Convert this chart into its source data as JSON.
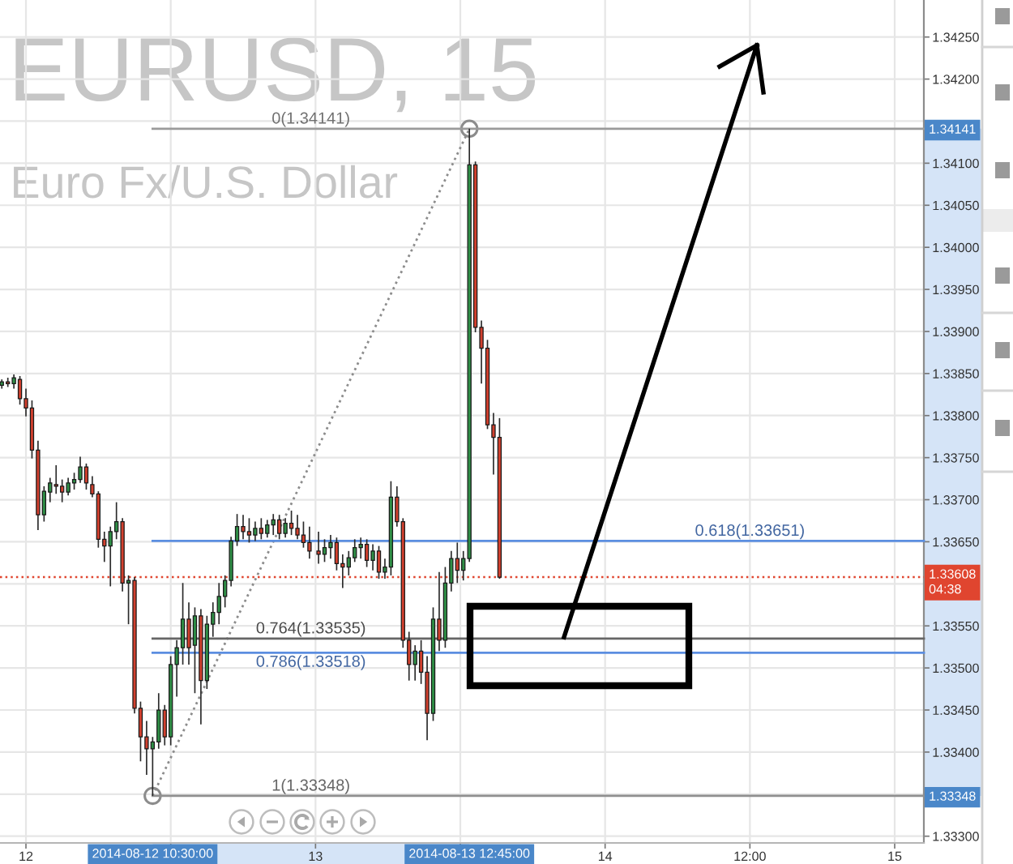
{
  "chart_data": {
    "type": "candlestick",
    "title": "EURUSD, 15",
    "subtitle": "Euro Fx/U.S. Dollar",
    "x": [
      "2014-08-11T22:00",
      "2014-08-11T22:30",
      "2014-08-11T23:00",
      "2014-08-11T23:30",
      "2014-08-12T00:00",
      "2014-08-12T00:30",
      "2014-08-12T01:00",
      "2014-08-12T01:30",
      "2014-08-12T02:00",
      "2014-08-12T02:30",
      "2014-08-12T03:00",
      "2014-08-12T03:30",
      "2014-08-12T04:00",
      "2014-08-12T04:30",
      "2014-08-12T05:00",
      "2014-08-12T05:30",
      "2014-08-12T06:00",
      "2014-08-12T06:30",
      "2014-08-12T07:00",
      "2014-08-12T07:30",
      "2014-08-12T08:00",
      "2014-08-12T08:30",
      "2014-08-12T09:00",
      "2014-08-12T09:30",
      "2014-08-12T10:00",
      "2014-08-12T10:30",
      "2014-08-12T11:00",
      "2014-08-12T11:30",
      "2014-08-12T12:00",
      "2014-08-12T12:30",
      "2014-08-12T13:00",
      "2014-08-12T13:30",
      "2014-08-12T14:00",
      "2014-08-12T14:30",
      "2014-08-12T15:00",
      "2014-08-12T15:30",
      "2014-08-12T16:00",
      "2014-08-12T16:30",
      "2014-08-12T17:00",
      "2014-08-12T17:30",
      "2014-08-12T18:00",
      "2014-08-12T18:30",
      "2014-08-12T19:00",
      "2014-08-12T19:30",
      "2014-08-12T20:00",
      "2014-08-12T20:30",
      "2014-08-12T21:00",
      "2014-08-12T21:30",
      "2014-08-12T22:00",
      "2014-08-12T22:30",
      "2014-08-12T23:00",
      "2014-08-12T23:30",
      "2014-08-13T00:15",
      "2014-08-13T00:45",
      "2014-08-13T01:15",
      "2014-08-13T01:45",
      "2014-08-13T02:15",
      "2014-08-13T02:45",
      "2014-08-13T03:15",
      "2014-08-13T03:45",
      "2014-08-13T04:15",
      "2014-08-13T04:45",
      "2014-08-13T05:15",
      "2014-08-13T05:45",
      "2014-08-13T06:15",
      "2014-08-13T06:45",
      "2014-08-13T07:15",
      "2014-08-13T07:45",
      "2014-08-13T08:15",
      "2014-08-13T08:45",
      "2014-08-13T09:15",
      "2014-08-13T09:45",
      "2014-08-13T10:15",
      "2014-08-13T10:45",
      "2014-08-13T11:15",
      "2014-08-13T11:45",
      "2014-08-13T12:15",
      "2014-08-13T12:45",
      "2014-08-13T13:15",
      "2014-08-13T13:45",
      "2014-08-13T14:15",
      "2014-08-13T14:45",
      "2014-08-13T15:15"
    ],
    "ohlc": [
      [
        1.33836,
        1.33843,
        1.33832,
        1.3384
      ],
      [
        1.3384,
        1.33845,
        1.33834,
        1.33838
      ],
      [
        1.33838,
        1.33849,
        1.33832,
        1.33845
      ],
      [
        1.33843,
        1.33847,
        1.33813,
        1.3382
      ],
      [
        1.3382,
        1.33832,
        1.33799,
        1.33809
      ],
      [
        1.33809,
        1.33818,
        1.33749,
        1.33759
      ],
      [
        1.33759,
        1.3377,
        1.33664,
        1.33682
      ],
      [
        1.33682,
        1.33716,
        1.33674,
        1.3371
      ],
      [
        1.33709,
        1.33726,
        1.33697,
        1.3372
      ],
      [
        1.33718,
        1.33741,
        1.33707,
        1.33716
      ],
      [
        1.33716,
        1.33724,
        1.33697,
        1.33709
      ],
      [
        1.33709,
        1.33726,
        1.33705,
        1.3372
      ],
      [
        1.3372,
        1.33732,
        1.33712,
        1.33724
      ],
      [
        1.33724,
        1.33751,
        1.3372,
        1.33739
      ],
      [
        1.33739,
        1.33743,
        1.33712,
        1.3372
      ],
      [
        1.33718,
        1.33728,
        1.33703,
        1.33707
      ],
      [
        1.33707,
        1.3371,
        1.33643,
        1.33653
      ],
      [
        1.33653,
        1.33662,
        1.33626,
        1.33645
      ],
      [
        1.33645,
        1.33668,
        1.33597,
        1.33662
      ],
      [
        1.33662,
        1.33697,
        1.33653,
        1.33674
      ],
      [
        1.33674,
        1.33678,
        1.33591,
        1.33601
      ],
      [
        1.33601,
        1.3361,
        1.33552,
        1.33604
      ],
      [
        1.33604,
        1.33608,
        1.33446,
        1.33452
      ],
      [
        1.33452,
        1.3346,
        1.33389,
        1.33418
      ],
      [
        1.33418,
        1.33437,
        1.33373,
        1.33404
      ],
      [
        1.33404,
        1.33418,
        1.33348,
        1.33412
      ],
      [
        1.33412,
        1.3347,
        1.33404,
        1.3345
      ],
      [
        1.3345,
        1.33456,
        1.33408,
        1.33418
      ],
      [
        1.33418,
        1.33514,
        1.33408,
        1.33504
      ],
      [
        1.33504,
        1.33533,
        1.33466,
        1.33524
      ],
      [
        1.33524,
        1.33601,
        1.33504,
        1.33558
      ],
      [
        1.33558,
        1.33578,
        1.33504,
        1.33524
      ],
      [
        1.33527,
        1.33572,
        1.3347,
        1.33562
      ],
      [
        1.33562,
        1.3357,
        1.33433,
        1.33485
      ],
      [
        1.33485,
        1.33562,
        1.33475,
        1.33552
      ],
      [
        1.33552,
        1.33578,
        1.33537,
        1.33566
      ],
      [
        1.33566,
        1.33601,
        1.33552,
        1.33585
      ],
      [
        1.33585,
        1.3361,
        1.33572,
        1.33604
      ],
      [
        1.33604,
        1.33656,
        1.33597,
        1.33651
      ],
      [
        1.33651,
        1.33683,
        1.33645,
        1.33668
      ],
      [
        1.33668,
        1.33682,
        1.33653,
        1.33662
      ],
      [
        1.33662,
        1.33678,
        1.33649,
        1.33658
      ],
      [
        1.33658,
        1.33674,
        1.33651,
        1.33666
      ],
      [
        1.33666,
        1.33678,
        1.33653,
        1.3366
      ],
      [
        1.3366,
        1.33676,
        1.33655,
        1.3367
      ],
      [
        1.3367,
        1.33683,
        1.33658,
        1.33676
      ],
      [
        1.33676,
        1.33682,
        1.33653,
        1.3366
      ],
      [
        1.3366,
        1.33678,
        1.33655,
        1.33672
      ],
      [
        1.33672,
        1.33687,
        1.33658,
        1.33666
      ],
      [
        1.33666,
        1.33682,
        1.33653,
        1.33658
      ],
      [
        1.33658,
        1.33674,
        1.33643,
        1.33649
      ],
      [
        1.33649,
        1.33668,
        1.3363,
        1.33639
      ],
      [
        1.33639,
        1.33662,
        1.33624,
        1.33635
      ],
      [
        1.33635,
        1.33653,
        1.33626,
        1.33643
      ],
      [
        1.33643,
        1.33658,
        1.3363,
        1.33649
      ],
      [
        1.33649,
        1.33655,
        1.33616,
        1.33624
      ],
      [
        1.33624,
        1.33635,
        1.33595,
        1.3362
      ],
      [
        1.3362,
        1.33639,
        1.3361,
        1.33631
      ],
      [
        1.33631,
        1.33653,
        1.33626,
        1.33643
      ],
      [
        1.33643,
        1.33655,
        1.3363,
        1.33647
      ],
      [
        1.33647,
        1.33653,
        1.3362,
        1.33628
      ],
      [
        1.33628,
        1.33647,
        1.33616,
        1.33639
      ],
      [
        1.33639,
        1.33645,
        1.33606,
        1.33614
      ],
      [
        1.33614,
        1.3363,
        1.33606,
        1.3362
      ],
      [
        1.3362,
        1.33722,
        1.3361,
        1.33703
      ],
      [
        1.33703,
        1.33716,
        1.33668,
        1.33674
      ],
      [
        1.33674,
        1.33678,
        1.33524,
        1.33533
      ],
      [
        1.33533,
        1.33543,
        1.33485,
        1.33504
      ],
      [
        1.33504,
        1.33527,
        1.33485,
        1.3352
      ],
      [
        1.3352,
        1.33533,
        1.33481,
        1.33495
      ],
      [
        1.33495,
        1.33514,
        1.33414,
        1.33446
      ],
      [
        1.33446,
        1.33572,
        1.33437,
        1.33558
      ],
      [
        1.33558,
        1.33614,
        1.3352,
        1.33533
      ],
      [
        1.33533,
        1.3362,
        1.33524,
        1.33601
      ],
      [
        1.33601,
        1.33639,
        1.33591,
        1.3363
      ],
      [
        1.3363,
        1.33649,
        1.33601,
        1.33616
      ],
      [
        1.33616,
        1.33639,
        1.33604,
        1.3363
      ],
      [
        1.3363,
        1.34141,
        1.33626,
        1.34098
      ],
      [
        1.34098,
        1.34102,
        1.33899,
        1.33905
      ],
      [
        1.33905,
        1.33913,
        1.33838,
        1.3388
      ],
      [
        1.3388,
        1.3389,
        1.33784,
        1.33789
      ],
      [
        1.33789,
        1.33803,
        1.3373,
        1.33774
      ],
      [
        1.33774,
        1.33797,
        1.33606,
        1.33608
      ]
    ],
    "colors": [
      "#2f8f46",
      "#d2402e",
      "#2f8f46",
      "#d2402e",
      "#d2402e",
      "#d2402e",
      "#d2402e",
      "#2f8f46",
      "#2f8f46",
      "#d2402e",
      "#d2402e",
      "#2f8f46",
      "#2f8f46",
      "#2f8f46",
      "#d2402e",
      "#d2402e",
      "#d2402e",
      "#d2402e",
      "#2f8f46",
      "#2f8f46",
      "#d2402e",
      "#2f8f46",
      "#d2402e",
      "#d2402e",
      "#d2402e",
      "#2f8f46",
      "#2f8f46",
      "#d2402e",
      "#2f8f46",
      "#2f8f46",
      "#2f8f46",
      "#d2402e",
      "#2f8f46",
      "#d2402e",
      "#2f8f46",
      "#2f8f46",
      "#2f8f46",
      "#2f8f46",
      "#2f8f46",
      "#2f8f46",
      "#d2402e",
      "#d2402e",
      "#2f8f46",
      "#d2402e",
      "#2f8f46",
      "#2f8f46",
      "#d2402e",
      "#2f8f46",
      "#d2402e",
      "#d2402e",
      "#d2402e",
      "#d2402e",
      "#d2402e",
      "#2f8f46",
      "#2f8f46",
      "#d2402e",
      "#d2402e",
      "#2f8f46",
      "#2f8f46",
      "#2f8f46",
      "#d2402e",
      "#2f8f46",
      "#d2402e",
      "#2f8f46",
      "#2f8f46",
      "#d2402e",
      "#d2402e",
      "#d2402e",
      "#2f8f46",
      "#d2402e",
      "#d2402e",
      "#2f8f46",
      "#d2402e",
      "#2f8f46",
      "#2f8f46",
      "#d2402e",
      "#2f8f46",
      "#2f8f46",
      "#d2402e",
      "#d2402e",
      "#d2402e",
      "#d2402e",
      "#d2402e"
    ],
    "series": [
      {
        "type": "line",
        "x": [
          "2014-08-12T10:30",
          "2014-08-13T12:45"
        ],
        "values": [
          1.33348,
          1.34141
        ],
        "color": "#8c8c8c",
        "line_style": "dotted",
        "marker": "circle"
      },
      {
        "type": "line",
        "x": [
          "2014-08-12T10:30",
          "2014-08-15T02:25"
        ],
        "values": [
          1.34141,
          1.34141
        ],
        "color": "#9a9a9a"
      },
      {
        "type": "line",
        "x": [
          "2014-08-12T10:30",
          "2014-08-15T02:25"
        ],
        "values": [
          1.33651,
          1.33651
        ],
        "color": "#5b8ee0"
      },
      {
        "type": "line",
        "x": [
          "2014-08-12T10:30",
          "2014-08-15T02:25"
        ],
        "values": [
          1.33535,
          1.33535
        ],
        "color": "#666666"
      },
      {
        "type": "line",
        "x": [
          "2014-08-12T10:30",
          "2014-08-15T02:25"
        ],
        "values": [
          1.33518,
          1.33518
        ],
        "color": "#5b8ee0"
      },
      {
        "type": "line",
        "x": [
          "2014-08-12T10:30",
          "2014-08-15T02:25"
        ],
        "values": [
          1.33348,
          1.33348
        ],
        "color": "#8f8f8f"
      }
    ],
    "annotations": [
      {
        "text": "0(1.34141)",
        "x": "2014-08-12T23:37",
        "y": 1.34141
      },
      {
        "text": "0.618(1.33651)",
        "x": "2014-08-14T12:00",
        "y": 1.33651
      },
      {
        "text": "0.764(1.33535)",
        "x": "2014-08-12T23:37",
        "y": 1.33535
      },
      {
        "text": "0.786(1.33518)",
        "x": "2014-08-12T23:37",
        "y": 1.33518
      },
      {
        "text": "1(1.33348)",
        "x": "2014-08-12T23:37",
        "y": 1.33348
      }
    ],
    "ref_lines": [
      {
        "axis": "y",
        "value": 1.33608,
        "label": "1.33608\n04:38",
        "color": "#e0452f",
        "line_style": "dotted"
      }
    ],
    "xlim": [
      "2014-08-11T21:51",
      "2014-08-15T02:25"
    ],
    "xticks": [
      {
        "value": "2014-08-12T00:00",
        "label": "12"
      },
      {
        "value": "2014-08-12T12:00",
        "label": null
      },
      {
        "value": "2014-08-13T00:00",
        "label": "13"
      },
      {
        "value": "2014-08-13T12:00",
        "label": null
      },
      {
        "value": "2014-08-14T00:00",
        "label": "14"
      },
      {
        "value": "2014-08-14T12:00",
        "label": "12:00"
      },
      {
        "value": "2014-08-15T00:00",
        "label": "15"
      }
    ],
    "x2lim": [
      "2014-08-11T21:51",
      "2014-08-15T02:25"
    ],
    "x2ticks": [
      {
        "value": "2014-08-12T10:30",
        "label": "2014-08-12 10:30:00"
      },
      {
        "value": "2014-08-13T12:45",
        "label": "2014-08-13 12:45:00"
      }
    ],
    "ylim": [
      1.33292,
      1.34294
    ],
    "yticks": [
      {
        "value": 1.333,
        "label": "1.33300"
      },
      {
        "value": 1.3335,
        "label": null
      },
      {
        "value": 1.334,
        "label": "1.33400"
      },
      {
        "value": 1.3345,
        "label": "1.33450"
      },
      {
        "value": 1.335,
        "label": "1.33500"
      },
      {
        "value": 1.3355,
        "label": "1.33550"
      },
      {
        "value": 1.336,
        "label": null
      },
      {
        "value": 1.3365,
        "label": "1.33650"
      },
      {
        "value": 1.337,
        "label": "1.33700"
      },
      {
        "value": 1.3375,
        "label": "1.33750"
      },
      {
        "value": 1.338,
        "label": "1.33800"
      },
      {
        "value": 1.3385,
        "label": "1.33850"
      },
      {
        "value": 1.339,
        "label": "1.33900"
      },
      {
        "value": 1.3395,
        "label": "1.33950"
      },
      {
        "value": 1.34,
        "label": "1.34000"
      },
      {
        "value": 1.3405,
        "label": "1.34050"
      },
      {
        "value": 1.341,
        "label": "1.34100"
      },
      {
        "value": 1.3415,
        "label": null
      },
      {
        "value": 1.342,
        "label": "1.34200"
      },
      {
        "value": 1.3425,
        "label": "1.34250"
      }
    ],
    "y2lim": [
      1.33292,
      1.34294
    ],
    "y2ticks": [
      {
        "value": 1.34141,
        "label": "1.34141"
      },
      {
        "value": 1.33348,
        "label": "1.33348"
      }
    ],
    "grid": true
  }
}
